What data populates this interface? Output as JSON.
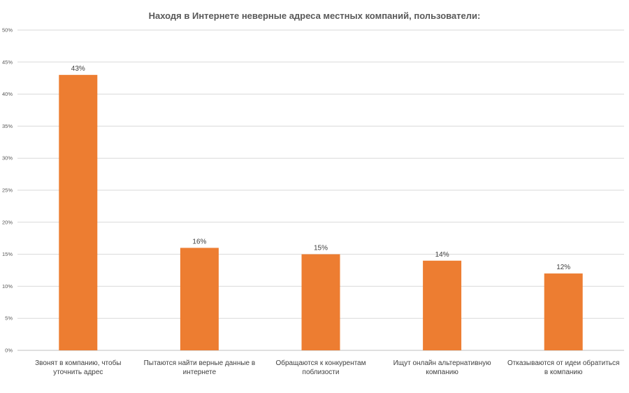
{
  "chart_data": {
    "type": "bar",
    "title": "Находя в Интернете неверные адреса местных компаний, пользователи:",
    "categories": [
      [
        "Звонят в компанию, чтобы",
        "уточнить адрес"
      ],
      [
        "Пытаются найти верные данные в",
        "интернете"
      ],
      [
        "Обращаются к конкурентам",
        "поблизости"
      ],
      [
        "Ищут онлайн альтернативную",
        "компанию"
      ],
      [
        "Отказываются от идеи обратиться",
        "в компанию"
      ]
    ],
    "values": [
      43,
      16,
      15,
      14,
      12
    ],
    "data_labels": [
      "43%",
      "16%",
      "15%",
      "14%",
      "12%"
    ],
    "yticks": [
      0,
      5,
      10,
      15,
      20,
      25,
      30,
      35,
      40,
      45,
      50
    ],
    "ytick_labels": [
      "0%",
      "5%",
      "10%",
      "15%",
      "20%",
      "25%",
      "30%",
      "35%",
      "40%",
      "45%",
      "50%"
    ],
    "ylim": [
      0,
      50
    ],
    "grid": true,
    "legend": "none",
    "bar_color": "#ED7D31"
  }
}
